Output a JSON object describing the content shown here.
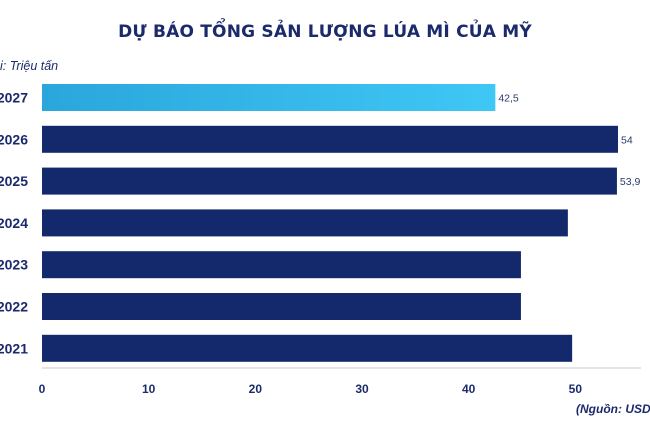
{
  "title": "DỰ BÁO TỔNG SẢN LƯỢNG LÚA MÌ CỦA MỸ",
  "unit_label": "i: Triệu tấn",
  "source": "(Nguồn: USDA",
  "colors": {
    "title": "#1b2a6b",
    "bar": "#13296b",
    "highlight_start": "#2aa6dc",
    "highlight_end": "#3fc7f5",
    "axis": "#c8c8c8"
  },
  "chart_data": {
    "type": "bar",
    "orientation": "horizontal",
    "categories": [
      "2027",
      "2026",
      "2025",
      "2024",
      "2023",
      "2022",
      "2021"
    ],
    "values": [
      42.5,
      54,
      53.9,
      49.3,
      44.9,
      44.9,
      49.7
    ],
    "data_labels": [
      "42,5",
      "54",
      "53,9",
      "",
      "",
      "",
      ""
    ],
    "highlight": [
      "2027"
    ],
    "xlim": [
      0,
      55
    ],
    "xticks": [
      0,
      10,
      20,
      30,
      40,
      50
    ],
    "grid": false
  }
}
